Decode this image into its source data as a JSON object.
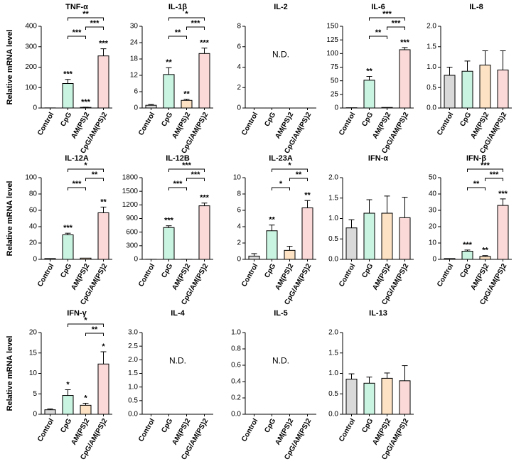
{
  "chart_data": [
    {
      "type": "bar",
      "title": "TNF-α",
      "ylabel": "Relative mRNA level",
      "categories": [
        "Control",
        "CpG",
        "AM(PS)2",
        "CpG/AM(PS)2"
      ],
      "colors": [
        "#d9d9d9",
        "#c9f4e1",
        "#fde2c4",
        "#fcd9d9"
      ],
      "values": [
        0.5,
        120,
        3,
        255
      ],
      "errors": [
        null,
        20,
        1,
        35
      ],
      "stars": [
        null,
        "***",
        "***",
        "***"
      ],
      "brackets": [
        {
          "from": 1,
          "to": 3,
          "label": "**"
        },
        {
          "from": 2,
          "to": 3,
          "label": "***"
        },
        {
          "from": 1,
          "to": 2,
          "label": "***"
        }
      ],
      "ylim": [
        0,
        400
      ],
      "yticks": [
        0,
        100,
        200,
        300,
        400
      ]
    },
    {
      "type": "bar",
      "title": "IL-1β",
      "categories": [
        "Control",
        "CpG",
        "AM(PS)2",
        "CpG/AM(PS)2"
      ],
      "colors": [
        "#d9d9d9",
        "#c9f4e1",
        "#fde2c4",
        "#fcd9d9"
      ],
      "values": [
        1,
        12.3,
        2.8,
        20
      ],
      "errors": [
        0.3,
        2.5,
        0.4,
        2
      ],
      "stars": [
        null,
        "**",
        "**",
        "***"
      ],
      "brackets": [
        {
          "from": 1,
          "to": 3,
          "label": "*"
        },
        {
          "from": 2,
          "to": 3,
          "label": "***"
        },
        {
          "from": 1,
          "to": 2,
          "label": "**"
        }
      ],
      "ylim": [
        0,
        30
      ],
      "yticks": [
        0,
        6,
        12,
        18,
        24,
        30
      ]
    },
    {
      "type": "bar",
      "title": "IL-2",
      "categories": [
        "Control",
        "CpG",
        "AM(PS)2",
        "CpG/AM(PS)2"
      ],
      "colors": [
        "#d9d9d9",
        "#c9f4e1",
        "#fde2c4",
        "#fcd9d9"
      ],
      "values": [
        null,
        null,
        null,
        null
      ],
      "errors": [
        null,
        null,
        null,
        null
      ],
      "annotation": "N.D.",
      "ylim": [
        0,
        8
      ],
      "yticks": [
        0,
        2,
        4,
        6,
        8
      ]
    },
    {
      "type": "bar",
      "title": "IL-6",
      "categories": [
        "Control",
        "CpG",
        "AM(PS)2",
        "CpG/AM(PS)2"
      ],
      "colors": [
        "#d9d9d9",
        "#c9f4e1",
        "#fde2c4",
        "#fcd9d9"
      ],
      "values": [
        0.5,
        51,
        1,
        107
      ],
      "errors": [
        null,
        7,
        null,
        4
      ],
      "stars": [
        null,
        "**",
        null,
        "***"
      ],
      "brackets": [
        {
          "from": 1,
          "to": 3,
          "label": "***"
        },
        {
          "from": 2,
          "to": 3,
          "label": "***"
        },
        {
          "from": 1,
          "to": 2,
          "label": "**"
        }
      ],
      "ylim": [
        0,
        150
      ],
      "yticks": [
        0,
        25,
        50,
        75,
        100,
        125,
        150
      ]
    },
    {
      "type": "bar",
      "title": "IL-8",
      "categories": [
        "Control",
        "CpG",
        "AM(PS)2",
        "CpG/AM(PS)2"
      ],
      "colors": [
        "#d9d9d9",
        "#c9f4e1",
        "#fde2c4",
        "#fcd9d9"
      ],
      "values": [
        0.8,
        0.9,
        1.05,
        0.93
      ],
      "errors": [
        0.2,
        0.25,
        0.35,
        0.47
      ],
      "ylim": [
        0,
        2
      ],
      "yticks": [
        {
          "value": 0,
          "label": "0.0"
        },
        {
          "value": 0.5,
          "label": "0.5"
        },
        {
          "value": 1,
          "label": "1.0"
        },
        {
          "value": 1.5,
          "label": "1.5"
        },
        {
          "value": 2,
          "label": "2.0"
        }
      ]
    },
    {
      "type": "bar",
      "title": "IL-12A",
      "ylabel": "Relative mRNA level",
      "categories": [
        "Control",
        "CpG",
        "AM(PS)2",
        "CpG/AM(PS)2"
      ],
      "colors": [
        "#d9d9d9",
        "#c9f4e1",
        "#fde2c4",
        "#fcd9d9"
      ],
      "values": [
        1,
        30,
        1.5,
        57
      ],
      "errors": [
        null,
        2,
        null,
        7
      ],
      "stars": [
        null,
        "***",
        null,
        "**"
      ],
      "brackets": [
        {
          "from": 1,
          "to": 3,
          "label": "*"
        },
        {
          "from": 2,
          "to": 3,
          "label": "**"
        },
        {
          "from": 1,
          "to": 2,
          "label": "***"
        }
      ],
      "ylim": [
        0,
        100
      ],
      "yticks": [
        0,
        20,
        40,
        60,
        80,
        100
      ]
    },
    {
      "type": "bar",
      "title": "IL-12B",
      "categories": [
        "Control",
        "CpG",
        "AM(PS)2",
        "CpG/AM(PS)2"
      ],
      "colors": [
        "#d9d9d9",
        "#c9f4e1",
        "#fde2c4",
        "#fcd9d9"
      ],
      "values": [
        2,
        700,
        2,
        1180
      ],
      "errors": [
        null,
        40,
        null,
        60
      ],
      "stars": [
        null,
        "***",
        null,
        "***"
      ],
      "brackets": [
        {
          "from": 1,
          "to": 3,
          "label": "***"
        },
        {
          "from": 2,
          "to": 3,
          "label": "***"
        },
        {
          "from": 1,
          "to": 2,
          "label": "***"
        }
      ],
      "ylim": [
        0,
        1800
      ],
      "yticks": [
        0,
        300,
        600,
        900,
        1200,
        1500,
        1800
      ]
    },
    {
      "type": "bar",
      "title": "IL-23A",
      "categories": [
        "Control",
        "CpG",
        "AM(PS)2",
        "CpG/AM(PS)2"
      ],
      "colors": [
        "#d9d9d9",
        "#c9f4e1",
        "#fde2c4",
        "#fcd9d9"
      ],
      "values": [
        0.4,
        3.5,
        1.1,
        6.3
      ],
      "errors": [
        0.3,
        0.7,
        0.5,
        0.9
      ],
      "stars": [
        null,
        "**",
        null,
        "**"
      ],
      "brackets": [
        {
          "from": 1,
          "to": 3,
          "label": "*"
        },
        {
          "from": 2,
          "to": 3,
          "label": "**"
        },
        {
          "from": 1,
          "to": 2,
          "label": "*"
        }
      ],
      "ylim": [
        0,
        10
      ],
      "yticks": [
        0,
        2,
        4,
        6,
        8,
        10
      ]
    },
    {
      "type": "bar",
      "title": "IFN-α",
      "categories": [
        "Control",
        "CpG",
        "AM(PS)2",
        "CpG/AM(PS)2"
      ],
      "colors": [
        "#d9d9d9",
        "#c9f4e1",
        "#fde2c4",
        "#fcd9d9"
      ],
      "values": [
        0.77,
        1.13,
        1.13,
        1.02
      ],
      "errors": [
        0.2,
        0.33,
        0.42,
        0.5
      ],
      "ylim": [
        0,
        2
      ],
      "yticks": [
        {
          "value": 0,
          "label": "0.0"
        },
        {
          "value": 0.5,
          "label": "0.5"
        },
        {
          "value": 1,
          "label": "1.0"
        },
        {
          "value": 1.5,
          "label": "1.5"
        },
        {
          "value": 2,
          "label": "2.0"
        }
      ]
    },
    {
      "type": "bar",
      "title": "IFN-β",
      "categories": [
        "Control",
        "CpG",
        "AM(PS)2",
        "CpG/AM(PS)2"
      ],
      "colors": [
        "#d9d9d9",
        "#c9f4e1",
        "#fde2c4",
        "#fcd9d9"
      ],
      "values": [
        0.5,
        5,
        1.8,
        33
      ],
      "errors": [
        null,
        0.7,
        0.5,
        4
      ],
      "stars": [
        null,
        "***",
        "**",
        "***"
      ],
      "brackets": [
        {
          "from": 1,
          "to": 3,
          "label": "***"
        },
        {
          "from": 2,
          "to": 3,
          "label": "***"
        },
        {
          "from": 1,
          "to": 2,
          "label": "**"
        }
      ],
      "ylim": [
        0,
        50
      ],
      "yticks": [
        0,
        10,
        20,
        30,
        40,
        50
      ]
    },
    {
      "type": "bar",
      "title": "IFN-γ",
      "ylabel": "Relative mRNA level",
      "categories": [
        "Control",
        "CpG",
        "AM(PS)2",
        "CpG/AM(PS)2"
      ],
      "colors": [
        "#d9d9d9",
        "#c9f4e1",
        "#fde2c4",
        "#fcd9d9"
      ],
      "values": [
        1.1,
        4.6,
        2.2,
        12.3
      ],
      "errors": [
        0.2,
        1.4,
        0.5,
        3
      ],
      "stars": [
        null,
        "*",
        "*",
        "*"
      ],
      "brackets": [
        {
          "from": 1,
          "to": 3,
          "label": "*"
        },
        {
          "from": 2,
          "to": 3,
          "label": "**"
        }
      ],
      "ylim": [
        0,
        20
      ],
      "yticks": [
        0,
        5,
        10,
        15,
        20
      ]
    },
    {
      "type": "bar",
      "title": "IL-4",
      "categories": [
        "Control",
        "CpG",
        "AM(PS)2",
        "CpG/AM(PS)2"
      ],
      "colors": [
        "#d9d9d9",
        "#c9f4e1",
        "#fde2c4",
        "#fcd9d9"
      ],
      "values": [
        null,
        null,
        null,
        null
      ],
      "errors": [
        null,
        null,
        null,
        null
      ],
      "annotation": "N.D.",
      "ylim": [
        0,
        3
      ],
      "yticks": [
        {
          "value": 0,
          "label": "0.0"
        },
        {
          "value": 0.5,
          "label": "0.5"
        },
        {
          "value": 1,
          "label": "1.0"
        },
        {
          "value": 1.5,
          "label": "1.5"
        },
        {
          "value": 2,
          "label": "2.0"
        },
        {
          "value": 2.5,
          "label": "2.5"
        },
        {
          "value": 3,
          "label": "3.0"
        }
      ]
    },
    {
      "type": "bar",
      "title": "IL-5",
      "categories": [
        "Control",
        "CpG",
        "AM(PS)2",
        "CpG/AM(PS)2"
      ],
      "colors": [
        "#d9d9d9",
        "#c9f4e1",
        "#fde2c4",
        "#fcd9d9"
      ],
      "values": [
        null,
        null,
        null,
        null
      ],
      "errors": [
        null,
        null,
        null,
        null
      ],
      "annotation": "N.D.",
      "ylim": [
        0,
        1
      ],
      "yticks": [
        {
          "value": 0,
          "label": "0.0"
        },
        0.2,
        0.4,
        0.6,
        0.8,
        {
          "value": 1,
          "label": "1.0"
        }
      ]
    },
    {
      "type": "bar",
      "title": "IL-13",
      "categories": [
        "Control",
        "CpG",
        "AM(PS)2",
        "CpG/AM(PS)2"
      ],
      "colors": [
        "#d9d9d9",
        "#c9f4e1",
        "#fde2c4",
        "#fcd9d9"
      ],
      "values": [
        0.86,
        0.76,
        0.88,
        0.82
      ],
      "errors": [
        0.13,
        0.15,
        0.13,
        0.37
      ],
      "ylim": [
        0,
        2
      ],
      "yticks": [
        {
          "value": 0,
          "label": "0.0"
        },
        {
          "value": 0.5,
          "label": "0.5"
        },
        {
          "value": 1,
          "label": "1.0"
        },
        {
          "value": 1.5,
          "label": "1.5"
        },
        {
          "value": 2,
          "label": "2.0"
        }
      ]
    }
  ]
}
